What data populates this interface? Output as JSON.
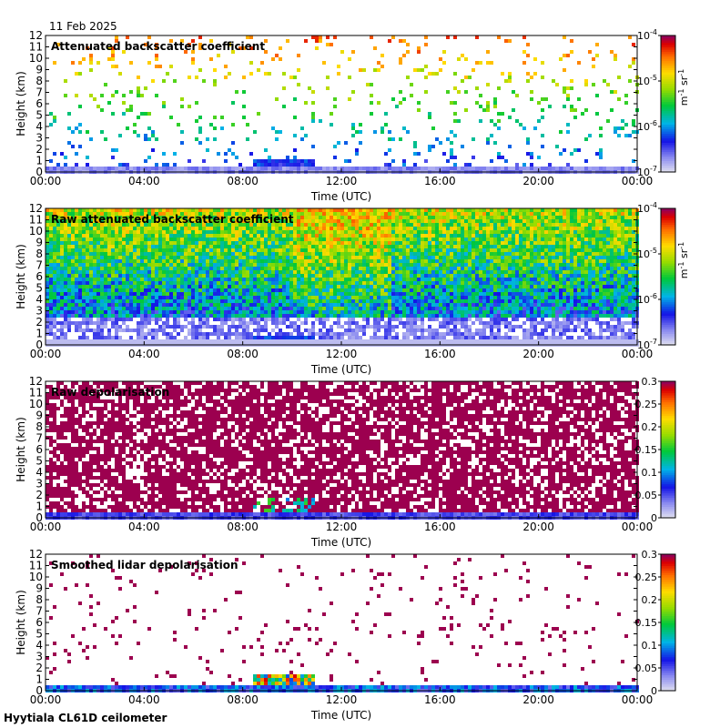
{
  "figure": {
    "date_label": "11 Feb 2025",
    "site_label": "Hyytiala CL61D ceilometer"
  },
  "chart_data": [
    {
      "type": "heatmap",
      "title": "Attenuated backscatter coefficient",
      "xlabel": "Time (UTC)",
      "ylabel": "Height (km)",
      "x_ticks": [
        "00:00",
        "04:00",
        "08:00",
        "12:00",
        "16:00",
        "20:00",
        "00:00"
      ],
      "y_ticks": [
        0,
        1,
        2,
        3,
        4,
        5,
        6,
        7,
        8,
        9,
        10,
        11,
        12
      ],
      "xlim_hours": [
        0,
        24
      ],
      "ylim_km": [
        0,
        12
      ],
      "colorbar": {
        "scale": "log",
        "range": [
          1e-07,
          0.0001
        ],
        "tick_labels": [
          "10-7",
          "10-6",
          "10-5",
          "10-4"
        ],
        "unit": "m-1 sr-1"
      },
      "features": {
        "surface_layer_top_km": 0.8,
        "enhanced_layer_hours": [
          8.4,
          10.9
        ],
        "enhanced_layer_top_km": 1.4
      }
    },
    {
      "type": "heatmap",
      "title": "Raw attenuated backscatter coefficient",
      "xlabel": "Time (UTC)",
      "ylabel": "Height (km)",
      "x_ticks": [
        "00:00",
        "04:00",
        "08:00",
        "12:00",
        "16:00",
        "20:00",
        "00:00"
      ],
      "y_ticks": [
        0,
        1,
        2,
        3,
        4,
        5,
        6,
        7,
        8,
        9,
        10,
        11,
        12
      ],
      "xlim_hours": [
        0,
        24
      ],
      "ylim_km": [
        0,
        12
      ],
      "colorbar": {
        "scale": "log",
        "range": [
          1e-07,
          0.0001
        ],
        "tick_labels": [
          "10-7",
          "10-6",
          "10-5",
          "10-4"
        ],
        "unit": "m-1 sr-1"
      },
      "features": {
        "surface_layer_top_km": 0.8,
        "enhanced_layer_hours": [
          8.4,
          10.9
        ],
        "enhanced_layer_top_km": 1.0
      }
    },
    {
      "type": "heatmap",
      "title": "Raw depolarisation",
      "xlabel": "Time (UTC)",
      "ylabel": "Height (km)",
      "x_ticks": [
        "00:00",
        "04:00",
        "08:00",
        "12:00",
        "16:00",
        "20:00",
        "00:00"
      ],
      "y_ticks": [
        0,
        1,
        2,
        3,
        4,
        5,
        6,
        7,
        8,
        9,
        10,
        11,
        12
      ],
      "xlim_hours": [
        0,
        24
      ],
      "ylim_km": [
        0,
        12
      ],
      "colorbar": {
        "scale": "linear",
        "range": [
          0,
          0.3
        ],
        "tick_labels": [
          "0",
          "0.05",
          "0.1",
          "0.15",
          "0.2",
          "0.25",
          "0.3"
        ],
        "unit": ""
      },
      "features": {
        "surface_layer_top_km": 0.6,
        "enhanced_layer_hours": [
          8.4,
          10.9
        ],
        "enhanced_layer_top_km": 1.8
      }
    },
    {
      "type": "heatmap",
      "title": "Smoothed lidar depolarisation",
      "xlabel": "Time (UTC)",
      "ylabel": "Height (km)",
      "x_ticks": [
        "00:00",
        "04:00",
        "08:00",
        "12:00",
        "16:00",
        "20:00",
        "00:00"
      ],
      "y_ticks": [
        0,
        1,
        2,
        3,
        4,
        5,
        6,
        7,
        8,
        9,
        10,
        11,
        12
      ],
      "xlim_hours": [
        0,
        24
      ],
      "ylim_km": [
        0,
        12
      ],
      "colorbar": {
        "scale": "linear",
        "range": [
          0,
          0.3
        ],
        "tick_labels": [
          "0",
          "0.05",
          "0.1",
          "0.15",
          "0.2",
          "0.25",
          "0.3"
        ],
        "unit": ""
      },
      "features": {
        "surface_layer_top_km": 0.7,
        "enhanced_layer_hours": [
          8.4,
          10.9
        ],
        "enhanced_layer_top_km": 1.6
      }
    }
  ]
}
